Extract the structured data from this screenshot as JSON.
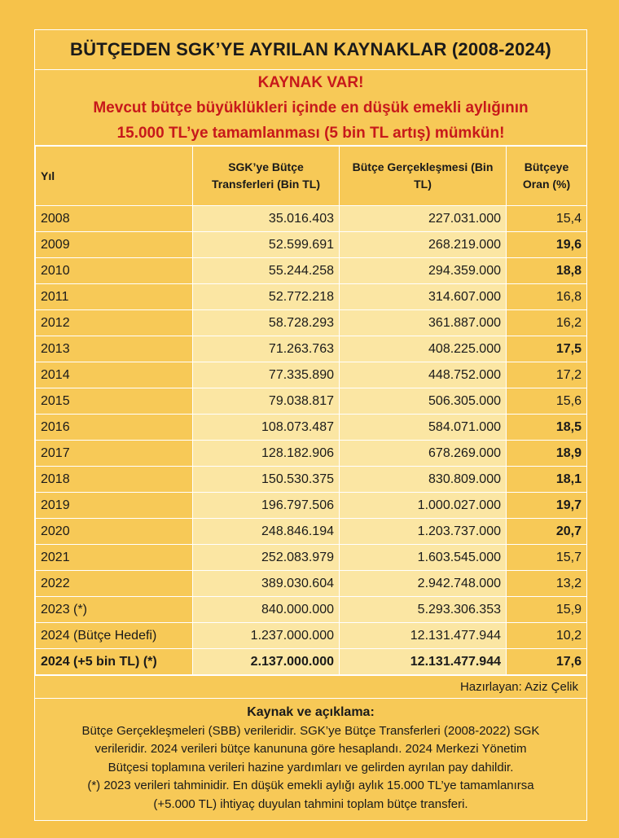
{
  "title": "BÜTÇEDEN SGK’YE AYRILAN KAYNAKLAR (2008-2024)",
  "alert": {
    "line1": "KAYNAK VAR!",
    "line2": "Mevcut bütçe büyüklükleri içinde en düşük emekli aylığının",
    "line3": "15.000 TL’ye tamamlanması (5 bin TL artış) mümkün!"
  },
  "headers": {
    "year": "Yıl",
    "sgk": "SGK’ye Bütçe Transferleri (Bin TL)",
    "real": "Bütçe Gerçekleşmesi (Bin TL)",
    "ratio": "Bütçeye Oran (%)"
  },
  "rows": [
    {
      "year": "2008",
      "sgk": "35.016.403",
      "real": "227.031.000",
      "ratio": "15,4"
    },
    {
      "year": "2009",
      "sgk": "52.599.691",
      "real": "268.219.000",
      "ratio": "19,6"
    },
    {
      "year": "2010",
      "sgk": "55.244.258",
      "real": "294.359.000",
      "ratio": "18,8"
    },
    {
      "year": "2011",
      "sgk": "52.772.218",
      "real": "314.607.000",
      "ratio": "16,8"
    },
    {
      "year": "2012",
      "sgk": "58.728.293",
      "real": "361.887.000",
      "ratio": "16,2"
    },
    {
      "year": "2013",
      "sgk": "71.263.763",
      "real": "408.225.000",
      "ratio": "17,5"
    },
    {
      "year": "2014",
      "sgk": "77.335.890",
      "real": "448.752.000",
      "ratio": "17,2"
    },
    {
      "year": "2015",
      "sgk": "79.038.817",
      "real": "506.305.000",
      "ratio": "15,6"
    },
    {
      "year": "2016",
      "sgk": "108.073.487",
      "real": "584.071.000",
      "ratio": "18,5"
    },
    {
      "year": "2017",
      "sgk": "128.182.906",
      "real": "678.269.000",
      "ratio": "18,9"
    },
    {
      "year": "2018",
      "sgk": "150.530.375",
      "real": "830.809.000",
      "ratio": "18,1"
    },
    {
      "year": "2019",
      "sgk": "196.797.506",
      "real": "1.000.027.000",
      "ratio": "19,7"
    },
    {
      "year": "2020",
      "sgk": "248.846.194",
      "real": "1.203.737.000",
      "ratio": "20,7"
    },
    {
      "year": "2021",
      "sgk": "252.083.979",
      "real": "1.603.545.000",
      "ratio": "15,7"
    },
    {
      "year": "2022",
      "sgk": "389.030.604",
      "real": "2.942.748.000",
      "ratio": "13,2"
    },
    {
      "year": "2023 (*)",
      "sgk": "840.000.000",
      "real": "5.293.306.353",
      "ratio": "15,9"
    },
    {
      "year": "2024 (Bütçe Hedefi)",
      "sgk": "1.237.000.000",
      "real": "12.131.477.944",
      "ratio": "10,2"
    },
    {
      "year": "2024 (+5 bin TL) (*)",
      "sgk": "2.137.000.000",
      "real": "12.131.477.944",
      "ratio": "17,6"
    }
  ],
  "prepared_by": "Hazırlayan: Aziz Çelik",
  "source": {
    "heading": "Kaynak ve açıklama:",
    "line1": "Bütçe Gerçekleşmeleri (SBB) verileridir. SGK’ye Bütçe Transferleri (2008-2022) SGK",
    "line2": "verileridir. 2024 verileri bütçe kanununa göre hesaplandı.  2024 Merkezi Yönetim",
    "line3": "Bütçesi toplamına verileri hazine yardımları ve gelirden ayrılan pay dahildir.",
    "line4": "(*) 2023 verileri tahminidir. En düşük emekli aylığı aylık 15.000 TL’ye tamamlanırsa",
    "line5": "(+5.000 TL) ihtiyaç duyulan tahmini toplam bütçe transferi."
  }
}
